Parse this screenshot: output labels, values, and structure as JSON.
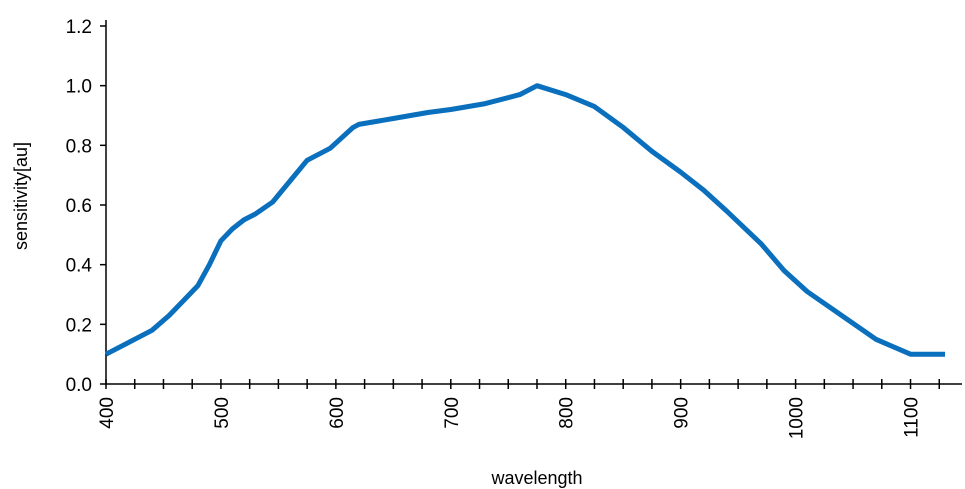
{
  "chart_data": {
    "type": "line",
    "title": "",
    "xlabel": "wavelength",
    "ylabel": "sensitivity[au]",
    "xlim": [
      400,
      1130
    ],
    "ylim": [
      0,
      1.2
    ],
    "x_ticks": [
      400,
      500,
      600,
      700,
      800,
      900,
      1000,
      1100
    ],
    "x_minor_step": 25,
    "y_ticks": [
      0.0,
      0.2,
      0.4,
      0.6,
      0.8,
      1.0,
      1.2
    ],
    "y_tick_labels": [
      "0.0",
      "0.2",
      "0.4",
      "0.6",
      "0.8",
      "1.0",
      "1.2"
    ],
    "grid": false,
    "legend": "none",
    "series": [
      {
        "color": "#0a6fbd",
        "x": [
          400,
          440,
          455,
          470,
          480,
          490,
          500,
          510,
          520,
          530,
          545,
          560,
          575,
          595,
          615,
          620,
          650,
          680,
          700,
          730,
          760,
          775,
          800,
          825,
          850,
          875,
          900,
          920,
          940,
          970,
          990,
          1010,
          1040,
          1070,
          1100,
          1130
        ],
        "y": [
          0.1,
          0.18,
          0.23,
          0.29,
          0.33,
          0.4,
          0.48,
          0.52,
          0.55,
          0.57,
          0.61,
          0.68,
          0.75,
          0.79,
          0.86,
          0.87,
          0.89,
          0.91,
          0.92,
          0.94,
          0.97,
          1.0,
          0.97,
          0.93,
          0.86,
          0.78,
          0.71,
          0.65,
          0.58,
          0.47,
          0.38,
          0.31,
          0.23,
          0.15,
          0.1,
          0.1
        ]
      }
    ]
  }
}
